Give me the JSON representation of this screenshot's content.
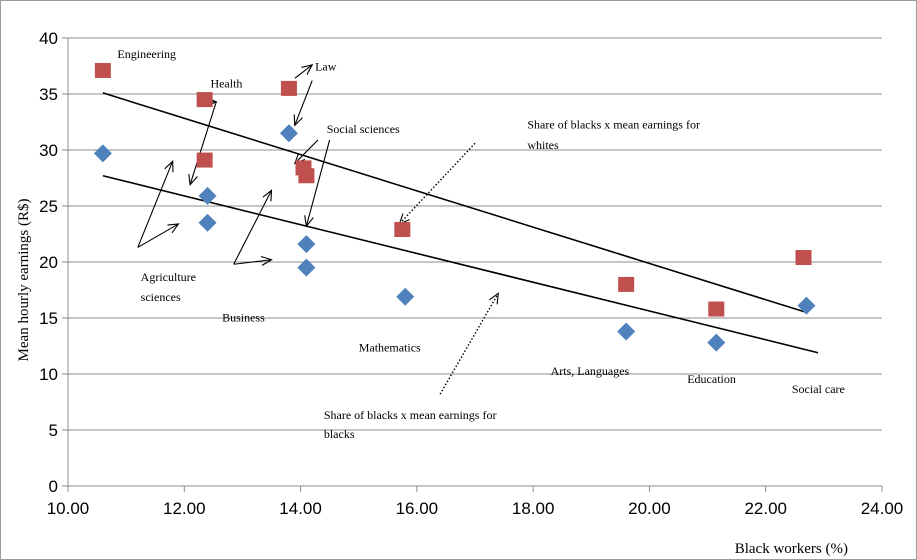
{
  "chart_data": {
    "type": "scatter",
    "title": "",
    "xlabel": "Black workers (%)",
    "ylabel": "Mean hourly earnings (R$)",
    "xlim": [
      10,
      24
    ],
    "ylim": [
      0,
      40
    ],
    "x_ticks": [
      "10.00",
      "12.00",
      "14.00",
      "16.00",
      "18.00",
      "20.00",
      "22.00",
      "24.00"
    ],
    "y_ticks": [
      "0",
      "5",
      "10",
      "15",
      "20",
      "25",
      "30",
      "35",
      "40"
    ],
    "grid": "horizontal",
    "series": [
      {
        "marker": "square",
        "color": "#c0504d",
        "points": [
          {
            "x": 10.6,
            "y": 37.1
          },
          {
            "x": 12.35,
            "y": 34.5
          },
          {
            "x": 13.8,
            "y": 35.5
          },
          {
            "x": 12.35,
            "y": 29.1
          },
          {
            "x": 14.05,
            "y": 28.4
          },
          {
            "x": 14.1,
            "y": 27.7
          },
          {
            "x": 15.75,
            "y": 22.9
          },
          {
            "x": 19.6,
            "y": 18.0
          },
          {
            "x": 21.15,
            "y": 15.8
          },
          {
            "x": 22.65,
            "y": 20.4
          }
        ]
      },
      {
        "marker": "diamond",
        "color": "#4f81bd",
        "points": [
          {
            "x": 10.6,
            "y": 29.7
          },
          {
            "x": 12.4,
            "y": 25.9
          },
          {
            "x": 12.4,
            "y": 23.5
          },
          {
            "x": 13.8,
            "y": 31.5
          },
          {
            "x": 14.1,
            "y": 21.6
          },
          {
            "x": 14.1,
            "y": 19.5
          },
          {
            "x": 15.8,
            "y": 16.9
          },
          {
            "x": 19.6,
            "y": 13.8
          },
          {
            "x": 21.15,
            "y": 12.8
          },
          {
            "x": 22.7,
            "y": 16.1
          }
        ]
      }
    ],
    "trend_lines": [
      {
        "x1": 10.6,
        "y1": 35.1,
        "x2": 22.7,
        "y2": 15.5
      },
      {
        "x1": 10.6,
        "y1": 27.7,
        "x2": 22.9,
        "y2": 11.9
      }
    ],
    "annotations": [
      {
        "text": "Engineering",
        "x": 10.85,
        "y": 38.2
      },
      {
        "text": "Health",
        "x": 12.45,
        "y": 35.6
      },
      {
        "text": "Law",
        "x": 14.25,
        "y": 37.1
      },
      {
        "text": "Social sciences",
        "x": 14.45,
        "y": 31.5
      },
      {
        "text": "Share of blacks x mean earnings for",
        "x": 17.9,
        "y": 31.9
      },
      {
        "text": "whites",
        "x": 17.9,
        "y": 30.1
      },
      {
        "text": "Agriculture",
        "x": 11.25,
        "y": 18.3
      },
      {
        "text": "sciences",
        "x": 11.25,
        "y": 16.5
      },
      {
        "text": "Business",
        "x": 12.65,
        "y": 14.7
      },
      {
        "text": "Mathematics",
        "x": 15.0,
        "y": 12.0
      },
      {
        "text": "Arts, Languages",
        "x": 18.3,
        "y": 9.9
      },
      {
        "text": "Education",
        "x": 20.65,
        "y": 9.2
      },
      {
        "text": "Social care",
        "x": 22.45,
        "y": 8.3
      },
      {
        "text": "Share of blacks x mean earnings for",
        "x": 14.4,
        "y": 6.0
      },
      {
        "text": "blacks",
        "x": 14.4,
        "y": 4.3
      }
    ],
    "arrows": [
      {
        "x1": 12.3,
        "y1": 34.3,
        "x2": 12.55,
        "y2": 34.3,
        "style": "solid"
      },
      {
        "x1": 12.55,
        "y1": 34.3,
        "x2": 12.1,
        "y2": 26.9,
        "style": "solid"
      },
      {
        "x1": 13.9,
        "y1": 36.4,
        "x2": 14.2,
        "y2": 37.6,
        "style": "solid"
      },
      {
        "x1": 14.2,
        "y1": 36.2,
        "x2": 13.9,
        "y2": 32.2,
        "style": "solid"
      },
      {
        "x1": 14.3,
        "y1": 30.9,
        "x2": 13.9,
        "y2": 28.8,
        "style": "solid"
      },
      {
        "x1": 14.5,
        "y1": 30.9,
        "x2": 14.1,
        "y2": 23.2,
        "style": "solid"
      },
      {
        "x1": 11.2,
        "y1": 21.3,
        "x2": 11.9,
        "y2": 23.4,
        "style": "solid"
      },
      {
        "x1": 11.2,
        "y1": 21.3,
        "x2": 11.8,
        "y2": 29.0,
        "style": "solid"
      },
      {
        "x1": 12.85,
        "y1": 19.8,
        "x2": 13.5,
        "y2": 20.2,
        "style": "solid"
      },
      {
        "x1": 12.85,
        "y1": 19.8,
        "x2": 13.5,
        "y2": 26.4,
        "style": "solid"
      },
      {
        "x1": 17.0,
        "y1": 30.6,
        "x2": 15.7,
        "y2": 23.4,
        "style": "dotted"
      },
      {
        "x1": 16.4,
        "y1": 8.2,
        "x2": 17.4,
        "y2": 17.2,
        "style": "dotted"
      }
    ]
  }
}
